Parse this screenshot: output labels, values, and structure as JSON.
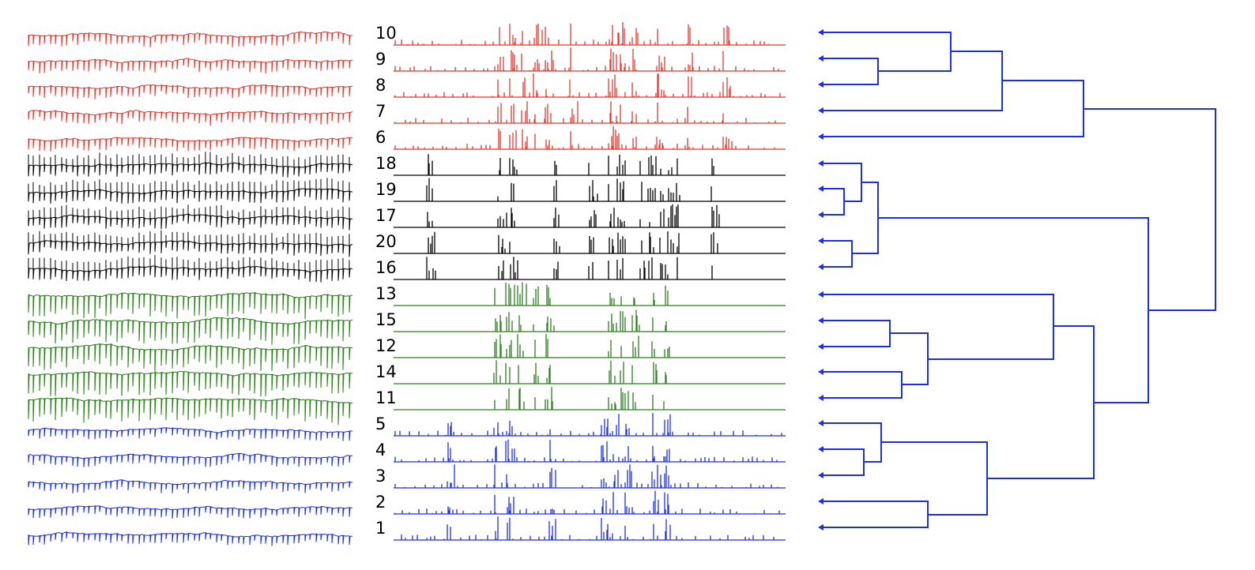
{
  "colors": {
    "group1": "#e8352e",
    "group2": "#000000",
    "group3": "#2e7d1f",
    "group4": "#1c2ee8",
    "dendrogram": "#1c2ee8"
  },
  "groups": [
    {
      "color_key": "group1",
      "labels": [
        "10",
        "9",
        "8",
        "7",
        "6"
      ]
    },
    {
      "color_key": "group2",
      "labels": [
        "18",
        "19",
        "17",
        "20",
        "16"
      ]
    },
    {
      "color_key": "group3",
      "labels": [
        "13",
        "15",
        "12",
        "14",
        "11"
      ]
    },
    {
      "color_key": "group4",
      "labels": [
        "5",
        "4",
        "3",
        "2",
        "1"
      ]
    }
  ]
}
